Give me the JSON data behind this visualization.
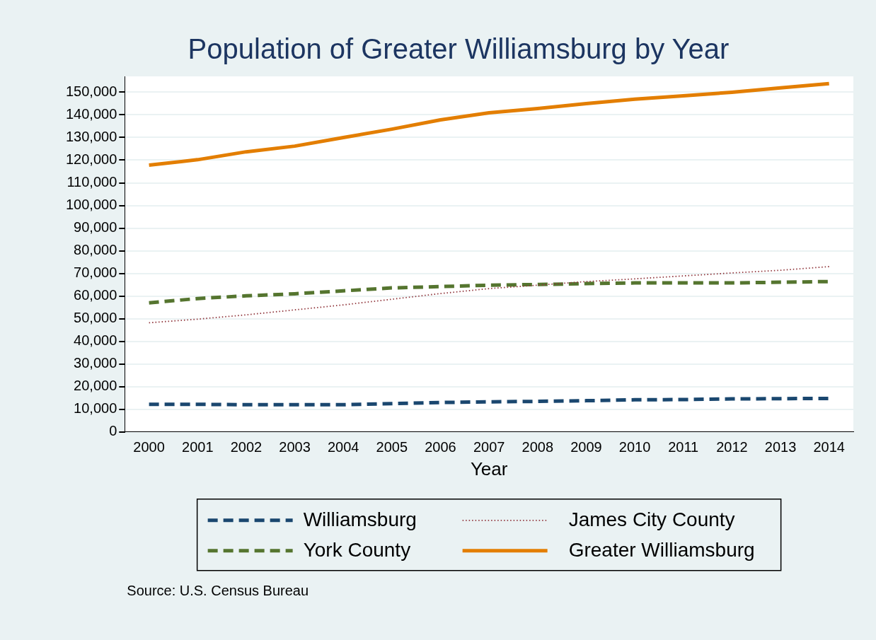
{
  "chart_data": {
    "type": "line",
    "title": "Population of Greater Williamsburg by Year",
    "xlabel": "Year",
    "categories": [
      "2000",
      "2001",
      "2002",
      "2003",
      "2004",
      "2005",
      "2006",
      "2007",
      "2008",
      "2009",
      "2010",
      "2011",
      "2012",
      "2013",
      "2014"
    ],
    "series": [
      {
        "name": "Williamsburg",
        "color": "#1a476f",
        "line_style": "dashed",
        "values": [
          12200,
          12200,
          12000,
          12000,
          12000,
          12500,
          13000,
          13300,
          13500,
          13800,
          14200,
          14300,
          14600,
          14700,
          14800
        ]
      },
      {
        "name": "James City County",
        "color": "#90353b",
        "line_style": "dotted",
        "values": [
          48200,
          49800,
          51700,
          53900,
          56100,
          58600,
          61100,
          63300,
          64800,
          66400,
          67600,
          68900,
          70200,
          71400,
          73000
        ]
      },
      {
        "name": "York County",
        "color": "#55752f",
        "line_style": "dashed",
        "values": [
          57000,
          58900,
          60100,
          61000,
          62300,
          63600,
          64200,
          64800,
          65100,
          65500,
          65800,
          65800,
          65800,
          66100,
          66400
        ]
      },
      {
        "name": "Greater Williamsburg",
        "color": "#e37e00",
        "line_style": "solid",
        "values": [
          117800,
          120200,
          123700,
          126200,
          130000,
          133700,
          137800,
          140900,
          142800,
          145000,
          146900,
          148400,
          150000,
          151900,
          153800
        ]
      }
    ],
    "ylim": [
      0,
      157000
    ],
    "yticks": [
      {
        "value": 0,
        "label": "0"
      },
      {
        "value": 10000,
        "label": "10,000"
      },
      {
        "value": 20000,
        "label": "20,000"
      },
      {
        "value": 30000,
        "label": "30,000"
      },
      {
        "value": 40000,
        "label": "40,000"
      },
      {
        "value": 50000,
        "label": "50,000"
      },
      {
        "value": 60000,
        "label": "60,000"
      },
      {
        "value": 70000,
        "label": "70,000"
      },
      {
        "value": 80000,
        "label": "80,000"
      },
      {
        "value": 90000,
        "label": "90,000"
      },
      {
        "value": 100000,
        "label": "100,000"
      },
      {
        "value": 110000,
        "label": "110,000"
      },
      {
        "value": 120000,
        "label": "120,000"
      },
      {
        "value": 130000,
        "label": "130,000"
      },
      {
        "value": 140000,
        "label": "140,000"
      },
      {
        "value": 150000,
        "label": "150,000"
      }
    ],
    "grid": "y",
    "legend": "bottom",
    "marker": "none",
    "annotations": [
      "Source: U.S. Census Bureau"
    ]
  }
}
